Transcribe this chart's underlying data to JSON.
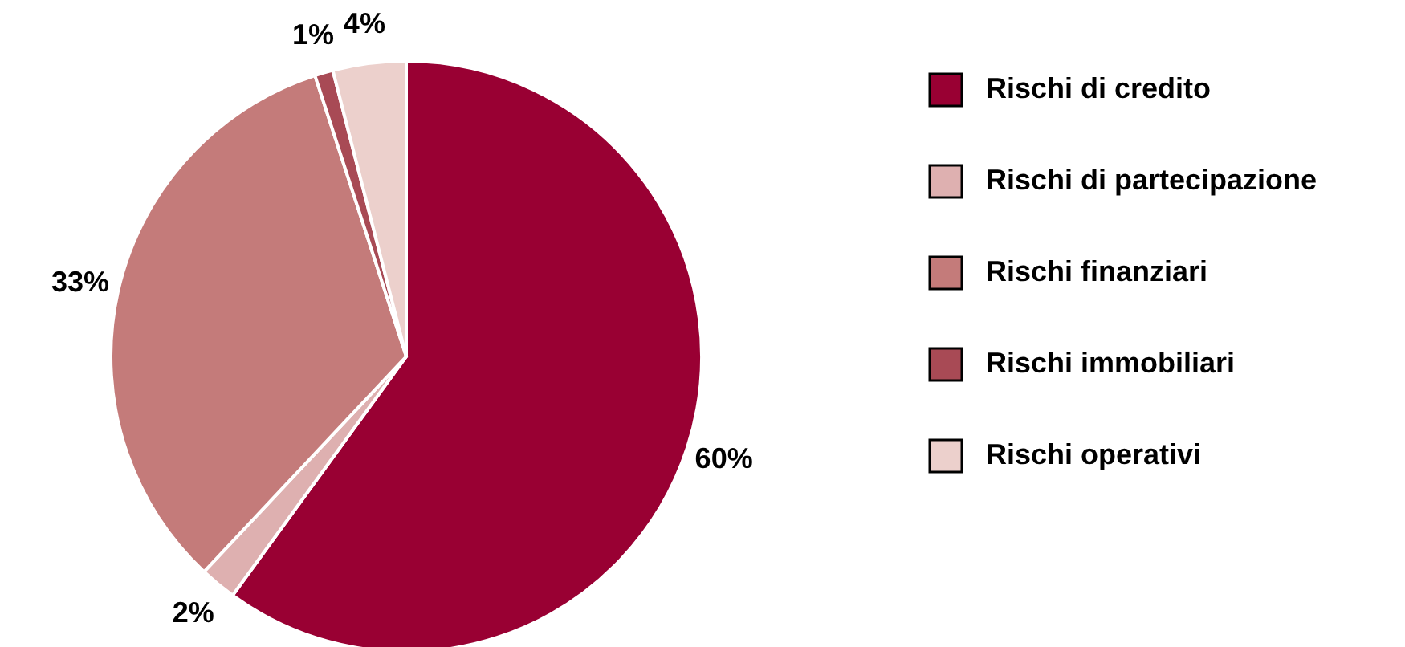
{
  "chart_data": {
    "type": "pie",
    "categories": [
      "Rischi di credito",
      "Rischi di partecipazione",
      "Rischi finanziari",
      "Rischi immobiliari",
      "Rischi operativi"
    ],
    "values": [
      60,
      2,
      33,
      1,
      4
    ],
    "colors": [
      "#990033",
      "#deb0b0",
      "#c47b7a",
      "#a84a55",
      "#ecd0cc"
    ],
    "value_labels": [
      "60%",
      "2%",
      "33%",
      "1%",
      "4%"
    ],
    "legend": "right"
  }
}
